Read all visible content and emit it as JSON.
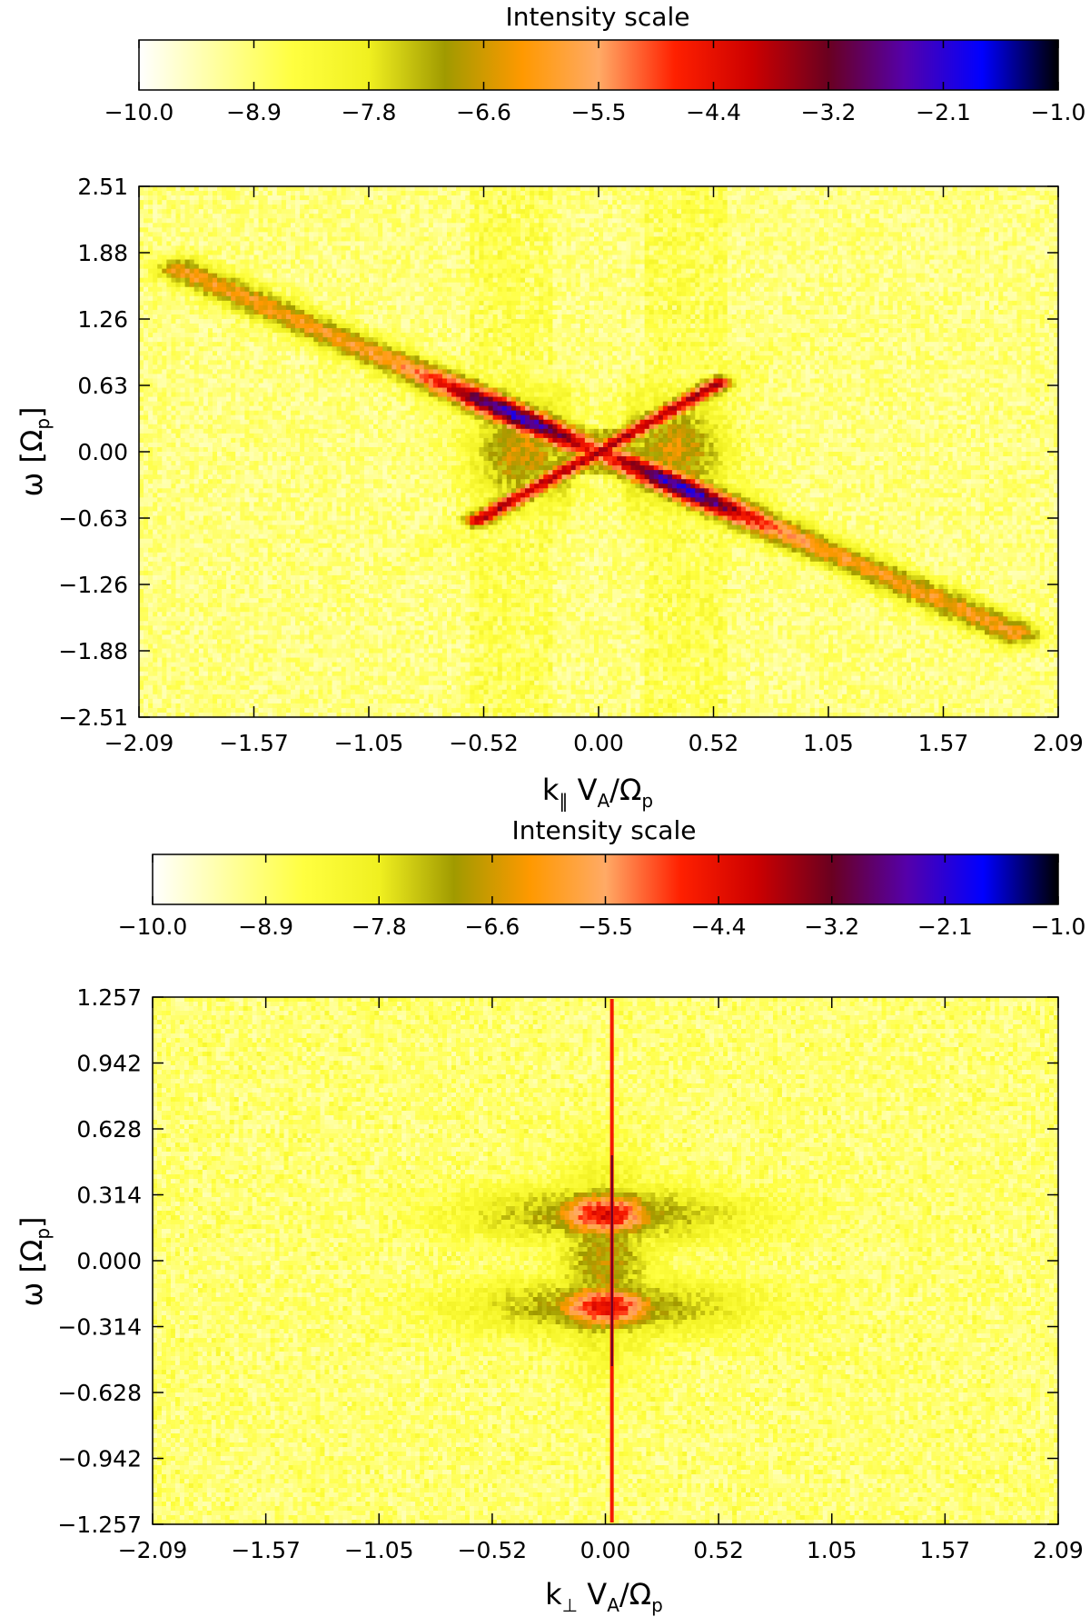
{
  "chart_data": [
    {
      "type": "heatmap",
      "panel": "top",
      "colorbar": {
        "title": "Intensity scale",
        "range": [
          -10.0,
          -1.0
        ],
        "tick_labels": [
          "−10.0",
          "−8.9",
          "−7.8",
          "−6.6",
          "−5.5",
          "−4.4",
          "−3.2",
          "−2.1",
          "−1.0"
        ],
        "colors": [
          "#ffffff",
          "#ffffa0",
          "#ffff40",
          "#f0f020",
          "#a09a00",
          "#ff9900",
          "#ffaa66",
          "#ff2000",
          "#cc0000",
          "#6a0020",
          "#5500aa",
          "#0000ff",
          "#000000"
        ]
      },
      "x_ticks": [
        "−2.09",
        "−1.57",
        "−1.05",
        "−0.52",
        "0.00",
        "0.52",
        "1.05",
        "1.57",
        "2.09"
      ],
      "y_ticks": [
        "2.51",
        "1.88",
        "1.26",
        "0.63",
        "0.00",
        "−0.63",
        "−1.26",
        "−1.88",
        "−2.51"
      ],
      "xlim": [
        -2.09,
        2.09
      ],
      "ylim": [
        -2.51,
        2.51
      ],
      "xlabel": {
        "main": "k",
        "sub": "‖",
        "rest": " V",
        "sub2": "A",
        "rest2": "/Ω",
        "sub3": "p"
      },
      "ylabel": {
        "main": "ω  [Ω",
        "sub": "p",
        "rest": "]"
      },
      "features": [
        {
          "name": "branch-upper-left",
          "from": [
            -2.0,
            1.8
          ],
          "to": [
            0.0,
            0.0
          ],
          "peak": -3.0
        },
        {
          "name": "branch-lower-right",
          "from": [
            0.0,
            0.0
          ],
          "to": [
            2.0,
            -1.8
          ],
          "peak": -3.0
        },
        {
          "name": "branch-upper-right",
          "from": [
            0.0,
            0.0
          ],
          "to": [
            0.52,
            0.63
          ],
          "peak": -4.0
        },
        {
          "name": "branch-lower-left",
          "from": [
            -0.52,
            -0.63
          ],
          "to": [
            0.0,
            0.0
          ],
          "peak": -4.0
        }
      ]
    },
    {
      "type": "heatmap",
      "panel": "bottom",
      "colorbar": {
        "title": "Intensity scale",
        "range": [
          -10.0,
          -1.0
        ],
        "tick_labels": [
          "−10.0",
          "−8.9",
          "−7.8",
          "−6.6",
          "−5.5",
          "−4.4",
          "−3.2",
          "−2.1",
          "−1.0"
        ]
      },
      "x_ticks": [
        "−2.09",
        "−1.57",
        "−1.05",
        "−0.52",
        "0.00",
        "0.52",
        "1.05",
        "1.57",
        "2.09"
      ],
      "y_ticks": [
        "1.257",
        "0.942",
        "0.628",
        "0.314",
        "0.000",
        "−0.314",
        "−0.628",
        "−0.942",
        "−1.257"
      ],
      "xlim": [
        -2.09,
        2.09
      ],
      "ylim": [
        -1.257,
        1.257
      ],
      "xlabel": {
        "main": "k",
        "sub": "⊥",
        "rest": " V",
        "sub2": "A",
        "rest2": "/Ω",
        "sub3": "p"
      },
      "ylabel": {
        "main": "ω  [Ω",
        "sub": "p",
        "rest": "]"
      },
      "features": [
        {
          "name": "vertical-line",
          "at_x": 0.03,
          "peak": -3.5
        },
        {
          "name": "blob-upper",
          "center": [
            0.0,
            0.22
          ],
          "peak": -5.0
        },
        {
          "name": "blob-lower",
          "center": [
            0.0,
            -0.22
          ],
          "peak": -5.0
        }
      ]
    }
  ]
}
